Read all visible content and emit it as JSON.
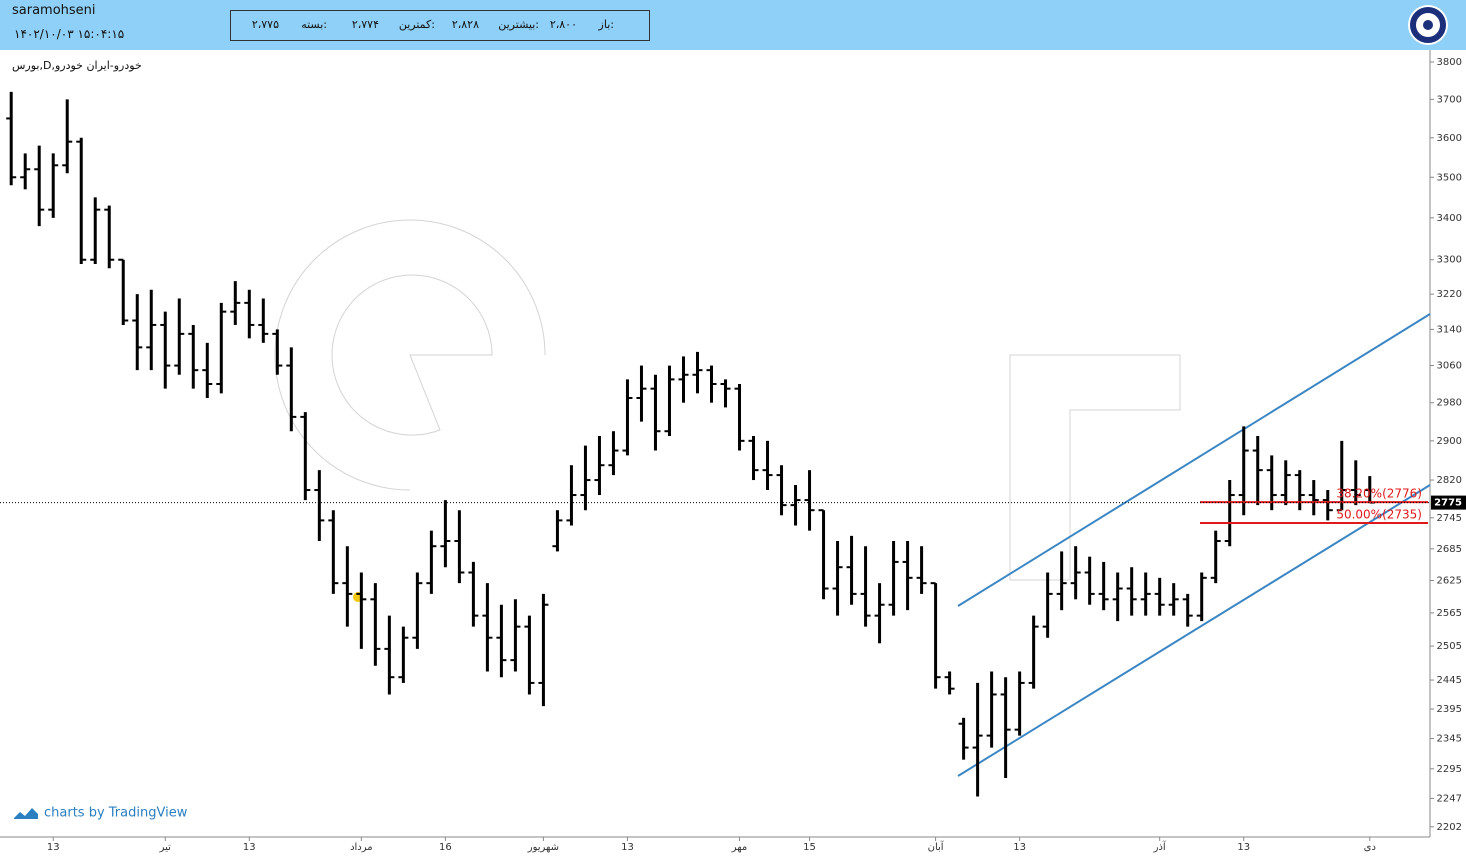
{
  "header": {
    "user": "saramohseni",
    "datetime": "۱۴۰۲/۱۰/۰۳ ۱۵:۰۴:۱۵",
    "open_label": "باز:",
    "open": "۲،۸۰۰",
    "high_label": "بیشترین:",
    "high": "۲،۸۲۸",
    "low_label": "کمترین:",
    "low": "۲،۷۷۴",
    "close_label": "بسته:",
    "close": "۲،۷۷۵"
  },
  "chart_data": {
    "type": "ohlc",
    "title": "بورس,D,خودرو-ایران خودرو",
    "credit": "charts by TradingView",
    "log_scale": true,
    "color": "#000000",
    "ylim": [
      2186,
      3819
    ],
    "yticks": [
      3800,
      3700,
      3600,
      3500,
      3400,
      3300,
      3220,
      3140,
      3060,
      2980,
      2900,
      2820,
      2745,
      2685,
      2625,
      2565,
      2505,
      2445,
      2395,
      2345,
      2295,
      2247,
      2202
    ],
    "xlim": [
      -0.8,
      101.3
    ],
    "xticks": [
      {
        "value": 3,
        "label": "13"
      },
      {
        "value": 11,
        "label": "تیر"
      },
      {
        "value": 17,
        "label": "13"
      },
      {
        "value": 25,
        "label": "مرداد"
      },
      {
        "value": 31,
        "label": "16"
      },
      {
        "value": 38,
        "label": "شهریور"
      },
      {
        "value": 44,
        "label": "13"
      },
      {
        "value": 52,
        "label": "مهر"
      },
      {
        "value": 57,
        "label": "15"
      },
      {
        "value": 66,
        "label": "آبان"
      },
      {
        "value": 72,
        "label": "13"
      },
      {
        "value": 82,
        "label": "آذر"
      },
      {
        "value": 88,
        "label": "13"
      },
      {
        "value": 97,
        "label": "دی"
      }
    ],
    "last_price": 2775,
    "fib_levels": [
      {
        "value": 2776,
        "label": "38.20%(2776)"
      },
      {
        "value": 2735,
        "label": "50.00%(2735)"
      }
    ],
    "bars": [
      [
        3650,
        3720,
        3480,
        3500
      ],
      [
        3500,
        3560,
        3470,
        3520
      ],
      [
        3520,
        3580,
        3380,
        3420
      ],
      [
        3420,
        3560,
        3400,
        3530
      ],
      [
        3530,
        3700,
        3510,
        3590
      ],
      [
        3590,
        3600,
        3290,
        3300
      ],
      [
        3300,
        3450,
        3290,
        3420
      ],
      [
        3420,
        3430,
        3280,
        3300
      ],
      [
        3300,
        3300,
        3150,
        3160
      ],
      [
        3160,
        3220,
        3050,
        3100
      ],
      [
        3100,
        3230,
        3050,
        3150
      ],
      [
        3150,
        3180,
        3010,
        3060
      ],
      [
        3060,
        3210,
        3040,
        3130
      ],
      [
        3130,
        3150,
        3010,
        3050
      ],
      [
        3050,
        3110,
        2990,
        3020
      ],
      [
        3020,
        3200,
        3000,
        3180
      ],
      [
        3180,
        3250,
        3150,
        3200
      ],
      [
        3200,
        3230,
        3120,
        3150
      ],
      [
        3150,
        3210,
        3110,
        3130
      ],
      [
        3130,
        3140,
        3040,
        3060
      ],
      [
        3060,
        3100,
        2920,
        2950
      ],
      [
        2950,
        2960,
        2780,
        2800
      ],
      [
        2800,
        2840,
        2700,
        2740
      ],
      [
        2740,
        2760,
        2600,
        2620
      ],
      [
        2620,
        2690,
        2540,
        2600
      ],
      [
        2600,
        2640,
        2500,
        2590
      ],
      [
        2590,
        2620,
        2470,
        2500
      ],
      [
        2500,
        2560,
        2420,
        2450
      ],
      [
        2450,
        2540,
        2440,
        2520
      ],
      [
        2520,
        2640,
        2500,
        2620
      ],
      [
        2620,
        2720,
        2600,
        2690
      ],
      [
        2690,
        2780,
        2650,
        2700
      ],
      [
        2700,
        2760,
        2620,
        2640
      ],
      [
        2640,
        2660,
        2540,
        2560
      ],
      [
        2560,
        2620,
        2460,
        2520
      ],
      [
        2520,
        2580,
        2450,
        2480
      ],
      [
        2480,
        2590,
        2460,
        2540
      ],
      [
        2540,
        2560,
        2420,
        2440
      ],
      [
        2440,
        2600,
        2400,
        2580
      ],
      [
        2690,
        2760,
        2680,
        2740
      ],
      [
        2740,
        2850,
        2730,
        2790
      ],
      [
        2790,
        2890,
        2760,
        2820
      ],
      [
        2820,
        2910,
        2790,
        2850
      ],
      [
        2850,
        2920,
        2830,
        2880
      ],
      [
        2880,
        3030,
        2870,
        2990
      ],
      [
        2990,
        3060,
        2940,
        3010
      ],
      [
        3010,
        3040,
        2880,
        2920
      ],
      [
        2920,
        3060,
        2910,
        3030
      ],
      [
        3030,
        3080,
        2980,
        3040
      ],
      [
        3040,
        3090,
        3000,
        3050
      ],
      [
        3050,
        3060,
        2980,
        3020
      ],
      [
        3020,
        3030,
        2970,
        3010
      ],
      [
        3010,
        3020,
        2880,
        2900
      ],
      [
        2900,
        2910,
        2820,
        2840
      ],
      [
        2840,
        2900,
        2800,
        2830
      ],
      [
        2830,
        2850,
        2750,
        2770
      ],
      [
        2770,
        2810,
        2730,
        2780
      ],
      [
        2780,
        2840,
        2720,
        2760
      ],
      [
        2760,
        2760,
        2590,
        2610
      ],
      [
        2610,
        2700,
        2560,
        2650
      ],
      [
        2650,
        2710,
        2580,
        2600
      ],
      [
        2600,
        2690,
        2540,
        2560
      ],
      [
        2560,
        2620,
        2510,
        2580
      ],
      [
        2580,
        2700,
        2560,
        2660
      ],
      [
        2660,
        2700,
        2570,
        2630
      ],
      [
        2630,
        2690,
        2600,
        2620
      ],
      [
        2620,
        2620,
        2430,
        2450
      ],
      [
        2450,
        2460,
        2420,
        2430
      ],
      [
        2370,
        2380,
        2310,
        2330
      ],
      [
        2330,
        2440,
        2250,
        2350
      ],
      [
        2350,
        2460,
        2330,
        2420
      ],
      [
        2420,
        2450,
        2280,
        2360
      ],
      [
        2360,
        2460,
        2350,
        2440
      ],
      [
        2440,
        2560,
        2430,
        2540
      ],
      [
        2540,
        2640,
        2520,
        2600
      ],
      [
        2600,
        2680,
        2570,
        2620
      ],
      [
        2620,
        2690,
        2590,
        2640
      ],
      [
        2640,
        2670,
        2580,
        2600
      ],
      [
        2600,
        2660,
        2570,
        2590
      ],
      [
        2590,
        2640,
        2550,
        2610
      ],
      [
        2610,
        2650,
        2560,
        2590
      ],
      [
        2590,
        2640,
        2560,
        2600
      ],
      [
        2600,
        2630,
        2560,
        2580
      ],
      [
        2580,
        2620,
        2560,
        2590
      ],
      [
        2590,
        2600,
        2540,
        2560
      ],
      [
        2560,
        2640,
        2550,
        2630
      ],
      [
        2630,
        2720,
        2620,
        2700
      ],
      [
        2700,
        2820,
        2690,
        2790
      ],
      [
        2790,
        2930,
        2750,
        2880
      ],
      [
        2880,
        2910,
        2770,
        2840
      ],
      [
        2840,
        2870,
        2760,
        2790
      ],
      [
        2790,
        2860,
        2770,
        2830
      ],
      [
        2830,
        2840,
        2760,
        2790
      ],
      [
        2790,
        2820,
        2750,
        2780
      ],
      [
        2780,
        2800,
        2740,
        2760
      ],
      [
        2760,
        2900,
        2760,
        2800
      ],
      [
        2800,
        2860,
        2770,
        2790
      ],
      [
        2800,
        2828,
        2774,
        2775
      ]
    ]
  }
}
